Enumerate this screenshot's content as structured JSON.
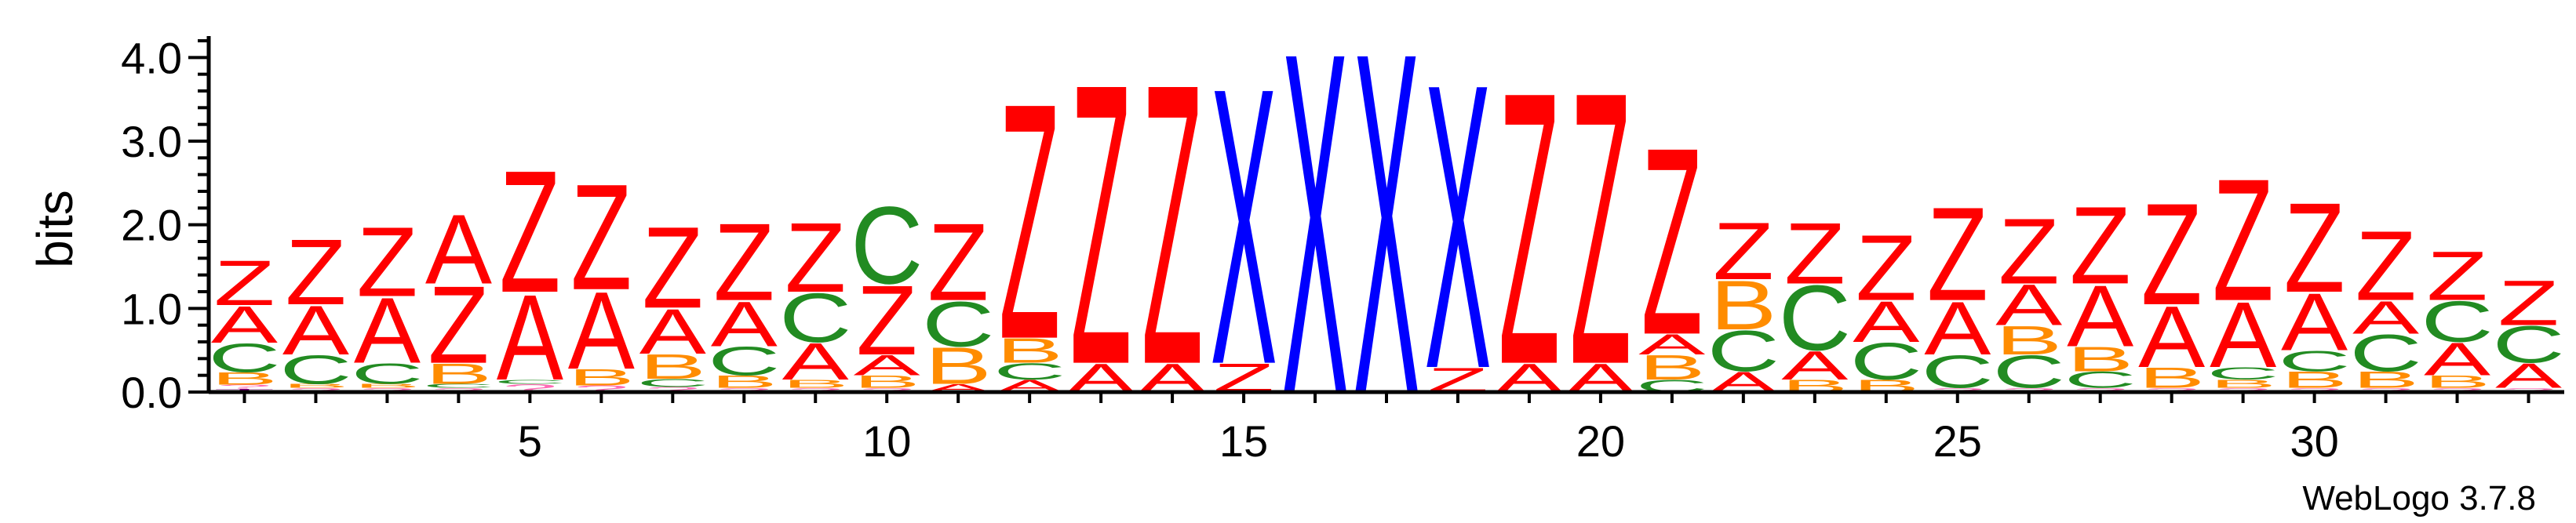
{
  "chart_data": {
    "type": "sequence-logo",
    "ylabel": "bits",
    "ylim": [
      0,
      4.2
    ],
    "yticks": [
      "0.0",
      "1.0",
      "2.0",
      "3.0",
      "4.0"
    ],
    "xticks": [
      5,
      10,
      15,
      20,
      25,
      30
    ],
    "num_positions": 33,
    "colors": {
      "Z": "#ff0000",
      "A": "#ff0000",
      "X": "#0000ff",
      "C": "#228b22",
      "B": "#ff8c00",
      "?": "#ff69b4",
      "T": "#800080"
    },
    "positions": [
      [
        {
          "letter": "T",
          "bits": 0.04
        },
        {
          "letter": "?",
          "bits": 0.05
        },
        {
          "letter": "B",
          "bits": 0.15
        },
        {
          "letter": "C",
          "bits": 0.35
        },
        {
          "letter": "A",
          "bits": 0.45
        },
        {
          "letter": "Z",
          "bits": 0.55
        }
      ],
      [
        {
          "letter": "?",
          "bits": 0.05
        },
        {
          "letter": "B",
          "bits": 0.05
        },
        {
          "letter": "C",
          "bits": 0.35
        },
        {
          "letter": "A",
          "bits": 0.6
        },
        {
          "letter": "Z",
          "bits": 0.8
        }
      ],
      [
        {
          "letter": "?",
          "bits": 0.05
        },
        {
          "letter": "B",
          "bits": 0.05
        },
        {
          "letter": "C",
          "bits": 0.25
        },
        {
          "letter": "A",
          "bits": 0.8
        },
        {
          "letter": "Z",
          "bits": 0.85
        }
      ],
      [
        {
          "letter": "?",
          "bits": 0.05
        },
        {
          "letter": "C",
          "bits": 0.05
        },
        {
          "letter": "B",
          "bits": 0.25
        },
        {
          "letter": "Z",
          "bits": 0.95
        },
        {
          "letter": "A",
          "bits": 0.85
        }
      ],
      [
        {
          "letter": "?",
          "bits": 0.1
        },
        {
          "letter": "C",
          "bits": 0.05
        },
        {
          "letter": "A",
          "bits": 1.05
        },
        {
          "letter": "Z",
          "bits": 1.5
        }
      ],
      [
        {
          "letter": "?",
          "bits": 0.08
        },
        {
          "letter": "B",
          "bits": 0.2
        },
        {
          "letter": "A",
          "bits": 0.95
        },
        {
          "letter": "Z",
          "bits": 1.3
        }
      ],
      [
        {
          "letter": "?",
          "bits": 0.06
        },
        {
          "letter": "C",
          "bits": 0.1
        },
        {
          "letter": "B",
          "bits": 0.3
        },
        {
          "letter": "A",
          "bits": 0.55
        },
        {
          "letter": "Z",
          "bits": 1.0
        }
      ],
      [
        {
          "letter": "?",
          "bits": 0.05
        },
        {
          "letter": "B",
          "bits": 0.15
        },
        {
          "letter": "C",
          "bits": 0.35
        },
        {
          "letter": "A",
          "bits": 0.55
        },
        {
          "letter": "Z",
          "bits": 0.95
        }
      ],
      [
        {
          "letter": "?",
          "bits": 0.05
        },
        {
          "letter": "B",
          "bits": 0.1
        },
        {
          "letter": "A",
          "bits": 0.45
        },
        {
          "letter": "C",
          "bits": 0.6
        },
        {
          "letter": "Z",
          "bits": 0.85
        }
      ],
      [
        {
          "letter": "?",
          "bits": 0.05
        },
        {
          "letter": "B",
          "bits": 0.15
        },
        {
          "letter": "A",
          "bits": 0.25
        },
        {
          "letter": "Z",
          "bits": 0.85
        },
        {
          "letter": "C",
          "bits": 0.95
        }
      ],
      [
        {
          "letter": "A",
          "bits": 0.1
        },
        {
          "letter": "B",
          "bits": 0.45
        },
        {
          "letter": "C",
          "bits": 0.55
        },
        {
          "letter": "Z",
          "bits": 0.95
        }
      ],
      [
        {
          "letter": "A",
          "bits": 0.15
        },
        {
          "letter": "C",
          "bits": 0.2
        },
        {
          "letter": "B",
          "bits": 0.3
        },
        {
          "letter": "Z",
          "bits": 2.9
        }
      ],
      [
        {
          "letter": "A",
          "bits": 0.35
        },
        {
          "letter": "Z",
          "bits": 3.45
        }
      ],
      [
        {
          "letter": "A",
          "bits": 0.35
        },
        {
          "letter": "Z",
          "bits": 3.45
        }
      ],
      [
        {
          "letter": "Z",
          "bits": 0.35
        },
        {
          "letter": "X",
          "bits": 3.4
        }
      ],
      [
        {
          "letter": "X",
          "bits": 4.2
        }
      ],
      [
        {
          "letter": "X",
          "bits": 4.2
        }
      ],
      [
        {
          "letter": "Z",
          "bits": 0.3
        },
        {
          "letter": "X",
          "bits": 3.5
        }
      ],
      [
        {
          "letter": "A",
          "bits": 0.35
        },
        {
          "letter": "Z",
          "bits": 3.35
        }
      ],
      [
        {
          "letter": "A",
          "bits": 0.35
        },
        {
          "letter": "Z",
          "bits": 3.35
        }
      ],
      [
        {
          "letter": "C",
          "bits": 0.15
        },
        {
          "letter": "B",
          "bits": 0.3
        },
        {
          "letter": "A",
          "bits": 0.25
        },
        {
          "letter": "Z",
          "bits": 2.3
        }
      ],
      [
        {
          "letter": "A",
          "bits": 0.25
        },
        {
          "letter": "C",
          "bits": 0.5
        },
        {
          "letter": "B",
          "bits": 0.6
        },
        {
          "letter": "Z",
          "bits": 0.7
        }
      ],
      [
        {
          "letter": "B",
          "bits": 0.15
        },
        {
          "letter": "A",
          "bits": 0.35
        },
        {
          "letter": "C",
          "bits": 0.8
        },
        {
          "letter": "Z",
          "bits": 0.75
        }
      ],
      [
        {
          "letter": "B",
          "bits": 0.15
        },
        {
          "letter": "C",
          "bits": 0.45
        },
        {
          "letter": "A",
          "bits": 0.5
        },
        {
          "letter": "Z",
          "bits": 0.8
        }
      ],
      [
        {
          "letter": "?",
          "bits": 0.05
        },
        {
          "letter": "C",
          "bits": 0.4
        },
        {
          "letter": "A",
          "bits": 0.65
        },
        {
          "letter": "Z",
          "bits": 1.15
        }
      ],
      [
        {
          "letter": "?",
          "bits": 0.05
        },
        {
          "letter": "C",
          "bits": 0.4
        },
        {
          "letter": "B",
          "bits": 0.35
        },
        {
          "letter": "A",
          "bits": 0.5
        },
        {
          "letter": "Z",
          "bits": 0.8
        }
      ],
      [
        {
          "letter": "?",
          "bits": 0.05
        },
        {
          "letter": "C",
          "bits": 0.2
        },
        {
          "letter": "B",
          "bits": 0.3
        },
        {
          "letter": "A",
          "bits": 0.75
        },
        {
          "letter": "Z",
          "bits": 0.95
        }
      ],
      [
        {
          "letter": "?",
          "bits": 0.05
        },
        {
          "letter": "B",
          "bits": 0.25
        },
        {
          "letter": "A",
          "bits": 0.75
        },
        {
          "letter": "Z",
          "bits": 1.25
        }
      ],
      [
        {
          "letter": "?",
          "bits": 0.05
        },
        {
          "letter": "B",
          "bits": 0.1
        },
        {
          "letter": "C",
          "bits": 0.15
        },
        {
          "letter": "A",
          "bits": 0.8
        },
        {
          "letter": "Z",
          "bits": 1.5
        }
      ],
      [
        {
          "letter": "?",
          "bits": 0.05
        },
        {
          "letter": "B",
          "bits": 0.2
        },
        {
          "letter": "C",
          "bits": 0.25
        },
        {
          "letter": "A",
          "bits": 0.7
        },
        {
          "letter": "Z",
          "bits": 1.1
        }
      ],
      [
        {
          "letter": "?",
          "bits": 0.05
        },
        {
          "letter": "B",
          "bits": 0.2
        },
        {
          "letter": "C",
          "bits": 0.45
        },
        {
          "letter": "A",
          "bits": 0.4
        },
        {
          "letter": "Z",
          "bits": 0.85
        }
      ],
      [
        {
          "letter": "?",
          "bits": 0.05
        },
        {
          "letter": "B",
          "bits": 0.15
        },
        {
          "letter": "A",
          "bits": 0.4
        },
        {
          "letter": "C",
          "bits": 0.5
        },
        {
          "letter": "Z",
          "bits": 0.6
        }
      ],
      [
        {
          "letter": "?",
          "bits": 0.05
        },
        {
          "letter": "A",
          "bits": 0.3
        },
        {
          "letter": "C",
          "bits": 0.45
        },
        {
          "letter": "Z",
          "bits": 0.55
        }
      ]
    ]
  },
  "footer": {
    "credit": "WebLogo 3.7.8"
  }
}
